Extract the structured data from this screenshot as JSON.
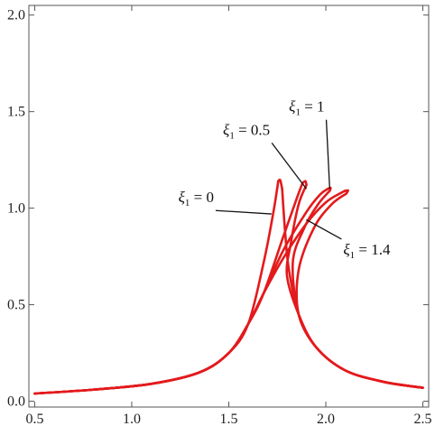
{
  "chart_data": {
    "type": "line",
    "title": "",
    "xlabel": "",
    "ylabel": "",
    "xlim": [
      0.47,
      2.53
    ],
    "ylim": [
      -0.03,
      2.05
    ],
    "x_ticks": [
      0.5,
      1.0,
      1.5,
      2.0,
      2.5
    ],
    "x_tick_labels": [
      "0.5",
      "1.0",
      "1.5",
      "2.0",
      "2.5"
    ],
    "y_ticks": [
      0.0,
      0.5,
      1.0,
      1.5,
      2.0
    ],
    "y_tick_labels": [
      "0.0",
      "0.5",
      "1.0",
      "1.5",
      "2.0"
    ],
    "grid": false,
    "line_color": "#e31a1c",
    "series": [
      {
        "xi_value": "0",
        "upper": [
          [
            0.5,
            0.04
          ],
          [
            0.8,
            0.06
          ],
          [
            1.1,
            0.09
          ],
          [
            1.35,
            0.15
          ],
          [
            1.5,
            0.25
          ],
          [
            1.6,
            0.4
          ],
          [
            1.68,
            0.72
          ],
          [
            1.73,
            0.98
          ],
          [
            1.755,
            1.14
          ]
        ],
        "tip": [
          [
            1.755,
            1.14
          ],
          [
            1.765,
            1.145
          ],
          [
            1.775,
            1.1
          ]
        ],
        "lower": [
          [
            1.775,
            1.1
          ],
          [
            1.79,
            0.88
          ],
          [
            1.81,
            0.68
          ],
          [
            1.86,
            0.45
          ],
          [
            1.95,
            0.28
          ],
          [
            2.1,
            0.16
          ],
          [
            2.3,
            0.1
          ],
          [
            2.5,
            0.07
          ]
        ]
      },
      {
        "xi_value": "0.5",
        "upper": [
          [
            0.5,
            0.04
          ],
          [
            0.8,
            0.06
          ],
          [
            1.1,
            0.09
          ],
          [
            1.35,
            0.15
          ],
          [
            1.5,
            0.25
          ],
          [
            1.6,
            0.4
          ],
          [
            1.68,
            0.56
          ],
          [
            1.78,
            0.85
          ],
          [
            1.85,
            1.05
          ],
          [
            1.88,
            1.13
          ]
        ],
        "tip": [
          [
            1.88,
            1.13
          ],
          [
            1.895,
            1.14
          ],
          [
            1.9,
            1.12
          ]
        ],
        "lower": [
          [
            1.9,
            1.12
          ],
          [
            1.86,
            1.02
          ],
          [
            1.82,
            0.82
          ],
          [
            1.8,
            0.65
          ],
          [
            1.86,
            0.45
          ],
          [
            1.95,
            0.28
          ],
          [
            2.1,
            0.16
          ],
          [
            2.3,
            0.1
          ],
          [
            2.5,
            0.07
          ]
        ]
      },
      {
        "xi_value": "1",
        "upper": [
          [
            0.5,
            0.04
          ],
          [
            0.8,
            0.06
          ],
          [
            1.1,
            0.09
          ],
          [
            1.35,
            0.15
          ],
          [
            1.5,
            0.25
          ],
          [
            1.6,
            0.4
          ],
          [
            1.68,
            0.56
          ],
          [
            1.78,
            0.78
          ],
          [
            1.9,
            0.98
          ],
          [
            1.97,
            1.07
          ],
          [
            2.01,
            1.1
          ]
        ],
        "tip": [
          [
            2.01,
            1.1
          ],
          [
            2.025,
            1.105
          ],
          [
            2.02,
            1.09
          ]
        ],
        "lower": [
          [
            2.02,
            1.09
          ],
          [
            1.96,
            1.02
          ],
          [
            1.89,
            0.9
          ],
          [
            1.83,
            0.72
          ],
          [
            1.86,
            0.45
          ],
          [
            1.95,
            0.28
          ],
          [
            2.1,
            0.16
          ],
          [
            2.3,
            0.1
          ],
          [
            2.5,
            0.07
          ]
        ]
      },
      {
        "xi_value": "1.4",
        "upper": [
          [
            0.5,
            0.04
          ],
          [
            0.8,
            0.06
          ],
          [
            1.1,
            0.09
          ],
          [
            1.35,
            0.15
          ],
          [
            1.5,
            0.25
          ],
          [
            1.6,
            0.4
          ],
          [
            1.68,
            0.56
          ],
          [
            1.78,
            0.74
          ],
          [
            1.9,
            0.92
          ],
          [
            2.0,
            1.03
          ],
          [
            2.08,
            1.08
          ],
          [
            2.1,
            1.09
          ]
        ],
        "tip": [
          [
            2.1,
            1.09
          ],
          [
            2.115,
            1.092
          ],
          [
            2.105,
            1.075
          ]
        ],
        "lower": [
          [
            2.105,
            1.075
          ],
          [
            2.03,
            1.02
          ],
          [
            1.94,
            0.9
          ],
          [
            1.86,
            0.68
          ],
          [
            1.86,
            0.45
          ],
          [
            1.95,
            0.28
          ],
          [
            2.1,
            0.16
          ],
          [
            2.3,
            0.1
          ],
          [
            2.5,
            0.07
          ]
        ]
      }
    ],
    "annotations": [
      {
        "text": "ξ",
        "sub": "1",
        "value_text": " = 0.5",
        "point_to": [
          1.9,
          1.1
        ],
        "label_at": [
          1.47,
          1.38
        ]
      },
      {
        "text": "ξ",
        "sub": "1",
        "value_text": " = 1",
        "point_to": [
          2.02,
          1.1
        ],
        "label_at": [
          1.81,
          1.5
        ]
      },
      {
        "text": "ξ",
        "sub": "1",
        "value_text": " = 0",
        "point_to": [
          1.72,
          0.97
        ],
        "label_at": [
          1.24,
          1.03
        ]
      },
      {
        "text": "ξ",
        "sub": "1",
        "value_text": " = 1.4",
        "point_to": [
          1.9,
          0.94
        ],
        "label_at": [
          2.09,
          0.76
        ]
      }
    ]
  }
}
